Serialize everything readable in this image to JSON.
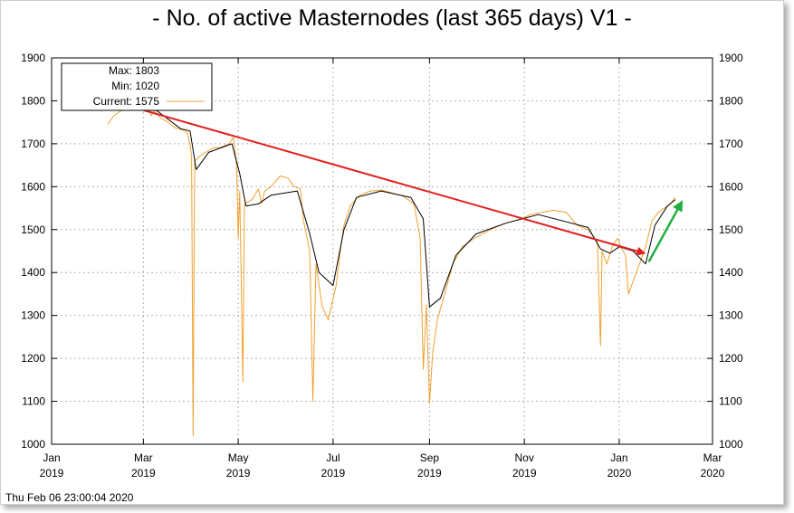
{
  "title": "- No. of active Masternodes (last 365 days) V1 -",
  "timestamp": "Thu Feb 06 23:00:04 2020",
  "legend": {
    "max": "Max: 1803",
    "min": "Min: 1020",
    "current": "Current: 1575"
  },
  "colors": {
    "series": "#f0a030",
    "trend_line": "#000000",
    "down_arrow": "#e02020",
    "up_arrow": "#20b040",
    "grid": "#b4b4b4"
  },
  "chart_data": {
    "type": "line",
    "title": "- No. of active Masternodes (last 365 days) V1 -",
    "xlabel": "",
    "ylabel": "",
    "ylim": [
      1000,
      1900
    ],
    "xlim": [
      "2019-01-01",
      "2020-03-01"
    ],
    "grid": true,
    "legend_position": "top-left",
    "y_ticks": [
      "1000",
      "1100",
      "1200",
      "1300",
      "1400",
      "1500",
      "1600",
      "1700",
      "1800",
      "1900"
    ],
    "x_ticks": [
      {
        "label": "Jan",
        "year": "2019",
        "date": "2019-01-01"
      },
      {
        "label": "Mar",
        "year": "2019",
        "date": "2019-03-01"
      },
      {
        "label": "May",
        "year": "2019",
        "date": "2019-05-01"
      },
      {
        "label": "Jul",
        "year": "2019",
        "date": "2019-07-01"
      },
      {
        "label": "Sep",
        "year": "2019",
        "date": "2019-09-01"
      },
      {
        "label": "Nov",
        "year": "2019",
        "date": "2019-11-01"
      },
      {
        "label": "Jan",
        "year": "2020",
        "date": "2020-01-01"
      },
      {
        "label": "Mar",
        "year": "2020",
        "date": "2020-03-01"
      }
    ],
    "series": [
      {
        "name": "Current",
        "values": [
          [
            "2019-02-06",
            1745
          ],
          [
            "2019-02-10",
            1765
          ],
          [
            "2019-02-15",
            1778
          ],
          [
            "2019-02-20",
            1785
          ],
          [
            "2019-02-25",
            1790
          ],
          [
            "2019-03-01",
            1795
          ],
          [
            "2019-03-04",
            1803
          ],
          [
            "2019-03-06",
            1765
          ],
          [
            "2019-03-08",
            1778
          ],
          [
            "2019-03-12",
            1760
          ],
          [
            "2019-03-17",
            1750
          ],
          [
            "2019-03-21",
            1738
          ],
          [
            "2019-03-26",
            1732
          ],
          [
            "2019-03-29",
            1728
          ],
          [
            "2019-03-31",
            1700
          ],
          [
            "2019-04-01",
            1670
          ],
          [
            "2019-04-02",
            1020
          ],
          [
            "2019-04-03",
            1660
          ],
          [
            "2019-04-06",
            1670
          ],
          [
            "2019-04-10",
            1680
          ],
          [
            "2019-04-15",
            1690
          ],
          [
            "2019-04-20",
            1692
          ],
          [
            "2019-04-25",
            1700
          ],
          [
            "2019-04-28",
            1715
          ],
          [
            "2019-04-30",
            1650
          ],
          [
            "2019-05-01",
            1480
          ],
          [
            "2019-05-02",
            1590
          ],
          [
            "2019-05-04",
            1145
          ],
          [
            "2019-05-05",
            1560
          ],
          [
            "2019-05-10",
            1570
          ],
          [
            "2019-05-14",
            1595
          ],
          [
            "2019-05-16",
            1560
          ],
          [
            "2019-05-18",
            1590
          ],
          [
            "2019-05-22",
            1600
          ],
          [
            "2019-05-28",
            1625
          ],
          [
            "2019-06-02",
            1620
          ],
          [
            "2019-06-06",
            1600
          ],
          [
            "2019-06-10",
            1595
          ],
          [
            "2019-06-12",
            1520
          ],
          [
            "2019-06-16",
            1450
          ],
          [
            "2019-06-18",
            1100
          ],
          [
            "2019-06-20",
            1420
          ],
          [
            "2019-06-24",
            1320
          ],
          [
            "2019-06-28",
            1290
          ],
          [
            "2019-07-03",
            1370
          ],
          [
            "2019-07-06",
            1460
          ],
          [
            "2019-07-08",
            1510
          ],
          [
            "2019-07-12",
            1555
          ],
          [
            "2019-07-18",
            1580
          ],
          [
            "2019-07-25",
            1590
          ],
          [
            "2019-08-01",
            1592
          ],
          [
            "2019-08-08",
            1585
          ],
          [
            "2019-08-15",
            1578
          ],
          [
            "2019-08-22",
            1560
          ],
          [
            "2019-08-26",
            1480
          ],
          [
            "2019-08-28",
            1175
          ],
          [
            "2019-08-30",
            1325
          ],
          [
            "2019-09-01",
            1095
          ],
          [
            "2019-09-03",
            1210
          ],
          [
            "2019-09-06",
            1290
          ],
          [
            "2019-09-10",
            1340
          ],
          [
            "2019-09-16",
            1420
          ],
          [
            "2019-09-22",
            1460
          ],
          [
            "2019-09-30",
            1480
          ],
          [
            "2019-10-10",
            1500
          ],
          [
            "2019-10-20",
            1515
          ],
          [
            "2019-10-30",
            1525
          ],
          [
            "2019-11-05",
            1535
          ],
          [
            "2019-11-12",
            1540
          ],
          [
            "2019-11-20",
            1545
          ],
          [
            "2019-11-28",
            1540
          ],
          [
            "2019-12-05",
            1510
          ],
          [
            "2019-12-12",
            1500
          ],
          [
            "2019-12-18",
            1470
          ],
          [
            "2019-12-20",
            1230
          ],
          [
            "2019-12-21",
            1450
          ],
          [
            "2019-12-24",
            1420
          ],
          [
            "2019-12-28",
            1465
          ],
          [
            "2019-12-31",
            1480
          ],
          [
            "2020-01-02",
            1460
          ],
          [
            "2020-01-05",
            1440
          ],
          [
            "2020-01-07",
            1350
          ],
          [
            "2020-01-10",
            1380
          ],
          [
            "2020-01-14",
            1420
          ],
          [
            "2020-01-18",
            1460
          ],
          [
            "2020-01-22",
            1520
          ],
          [
            "2020-01-26",
            1540
          ],
          [
            "2020-01-30",
            1550
          ],
          [
            "2020-02-03",
            1560
          ],
          [
            "2020-02-06",
            1575
          ]
        ]
      },
      {
        "name": "",
        "values": [
          [
            "2019-02-15",
            1778
          ],
          [
            "2019-03-05",
            1790
          ],
          [
            "2019-03-25",
            1735
          ],
          [
            "2019-03-31",
            1730
          ],
          [
            "2019-04-04",
            1640
          ],
          [
            "2019-04-12",
            1680
          ],
          [
            "2019-04-27",
            1700
          ],
          [
            "2019-05-02",
            1630
          ],
          [
            "2019-05-06",
            1555
          ],
          [
            "2019-05-14",
            1560
          ],
          [
            "2019-05-22",
            1580
          ],
          [
            "2019-06-08",
            1590
          ],
          [
            "2019-06-16",
            1490
          ],
          [
            "2019-06-22",
            1400
          ],
          [
            "2019-07-01",
            1370
          ],
          [
            "2019-07-08",
            1500
          ],
          [
            "2019-07-16",
            1575
          ],
          [
            "2019-08-01",
            1590
          ],
          [
            "2019-08-20",
            1575
          ],
          [
            "2019-08-28",
            1525
          ],
          [
            "2019-09-01",
            1320
          ],
          [
            "2019-09-08",
            1340
          ],
          [
            "2019-09-18",
            1440
          ],
          [
            "2019-10-01",
            1490
          ],
          [
            "2019-10-20",
            1515
          ],
          [
            "2019-11-10",
            1535
          ],
          [
            "2019-12-12",
            1505
          ],
          [
            "2019-12-20",
            1455
          ],
          [
            "2019-12-26",
            1445
          ],
          [
            "2020-01-01",
            1460
          ],
          [
            "2020-01-10",
            1450
          ],
          [
            "2020-01-18",
            1420
          ],
          [
            "2020-01-24",
            1510
          ],
          [
            "2020-02-01",
            1555
          ],
          [
            "2020-02-06",
            1570
          ]
        ]
      }
    ],
    "annotations": [
      {
        "type": "arrow",
        "color": "#e02020",
        "from": [
          "2019-02-05",
          1803
        ],
        "to": [
          "2020-01-17",
          1445
        ]
      },
      {
        "type": "arrow",
        "color": "#20b040",
        "from": [
          "2020-01-20",
          1425
        ],
        "to": [
          "2020-02-10",
          1563
        ]
      }
    ]
  }
}
